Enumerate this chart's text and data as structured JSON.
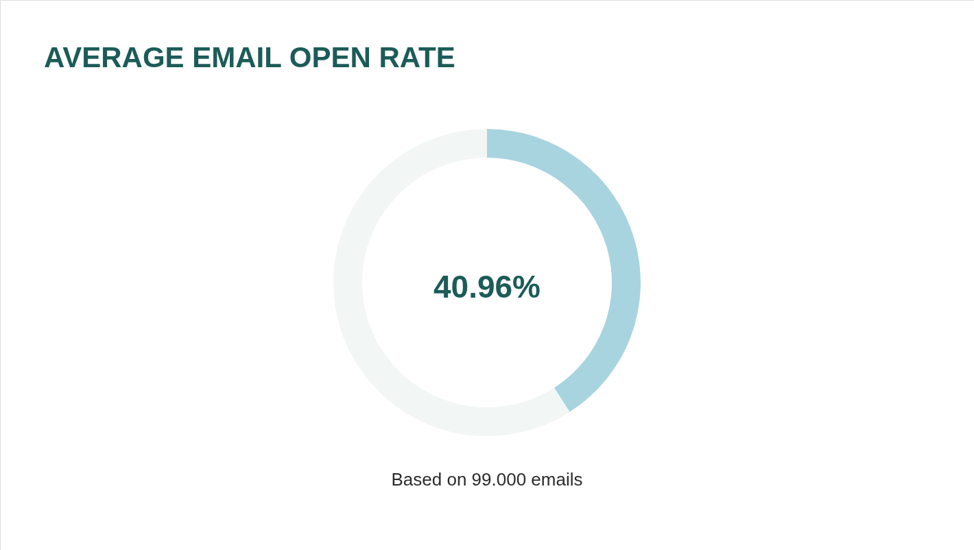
{
  "chart_data": {
    "type": "donut",
    "title": "AVERAGE EMAIL OPEN RATE",
    "categories": [
      null,
      null
    ],
    "values": [
      40.96,
      59.04
    ],
    "colors": [
      "#a8d4df",
      "#f2f6f5"
    ],
    "annotations": [
      "40.96%",
      "Based on 99.000 emails"
    ]
  }
}
